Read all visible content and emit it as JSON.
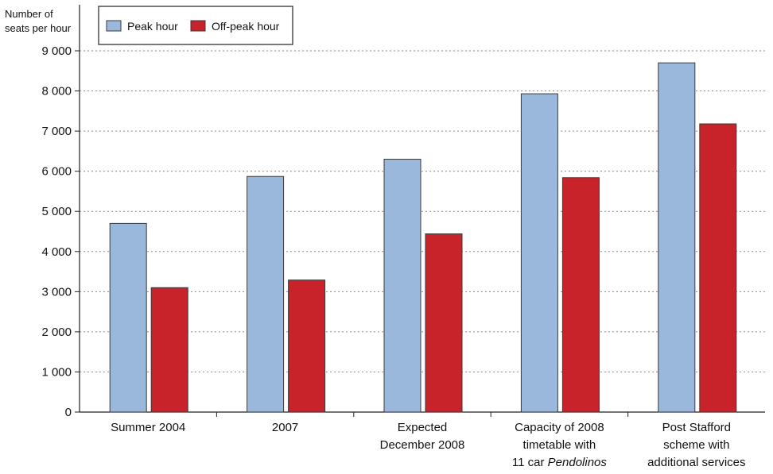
{
  "chart_data": {
    "type": "bar",
    "ylabel_lines": [
      "Number of",
      "seats per hour"
    ],
    "ylim": [
      0,
      9000
    ],
    "yticks": [
      {
        "value": 0,
        "label": "0"
      },
      {
        "value": 1000,
        "label": "1 000"
      },
      {
        "value": 2000,
        "label": "2 000"
      },
      {
        "value": 3000,
        "label": "3 000"
      },
      {
        "value": 4000,
        "label": "4 000"
      },
      {
        "value": 5000,
        "label": "5 000"
      },
      {
        "value": 6000,
        "label": "6 000"
      },
      {
        "value": 7000,
        "label": "7 000"
      },
      {
        "value": 8000,
        "label": "8 000"
      },
      {
        "value": 9000,
        "label": "9 000"
      }
    ],
    "grid": true,
    "legend_position": "top-left",
    "categories": [
      {
        "lines": [
          {
            "parts": [
              {
                "text": "Summer 2004",
                "italic": false
              }
            ]
          }
        ]
      },
      {
        "lines": [
          {
            "parts": [
              {
                "text": "2007",
                "italic": false
              }
            ]
          }
        ]
      },
      {
        "lines": [
          {
            "parts": [
              {
                "text": "Expected",
                "italic": false
              }
            ]
          },
          {
            "parts": [
              {
                "text": "December 2008",
                "italic": false
              }
            ]
          }
        ]
      },
      {
        "lines": [
          {
            "parts": [
              {
                "text": "Capacity of 2008",
                "italic": false
              }
            ]
          },
          {
            "parts": [
              {
                "text": "timetable with",
                "italic": false
              }
            ]
          },
          {
            "parts": [
              {
                "text": "11 car ",
                "italic": false
              },
              {
                "text": "Pendolinos",
                "italic": true
              }
            ]
          }
        ]
      },
      {
        "lines": [
          {
            "parts": [
              {
                "text": "Post Stafford",
                "italic": false
              }
            ]
          },
          {
            "parts": [
              {
                "text": "scheme with",
                "italic": false
              }
            ]
          },
          {
            "parts": [
              {
                "text": "additional services",
                "italic": false
              }
            ]
          }
        ]
      }
    ],
    "series": [
      {
        "name": "Peak hour",
        "color": "#9ab8dc",
        "values": [
          4700,
          5870,
          6300,
          7930,
          8700
        ]
      },
      {
        "name": "Off-peak hour",
        "color": "#c8232b",
        "values": [
          3100,
          3290,
          4440,
          5840,
          7180
        ]
      }
    ]
  }
}
